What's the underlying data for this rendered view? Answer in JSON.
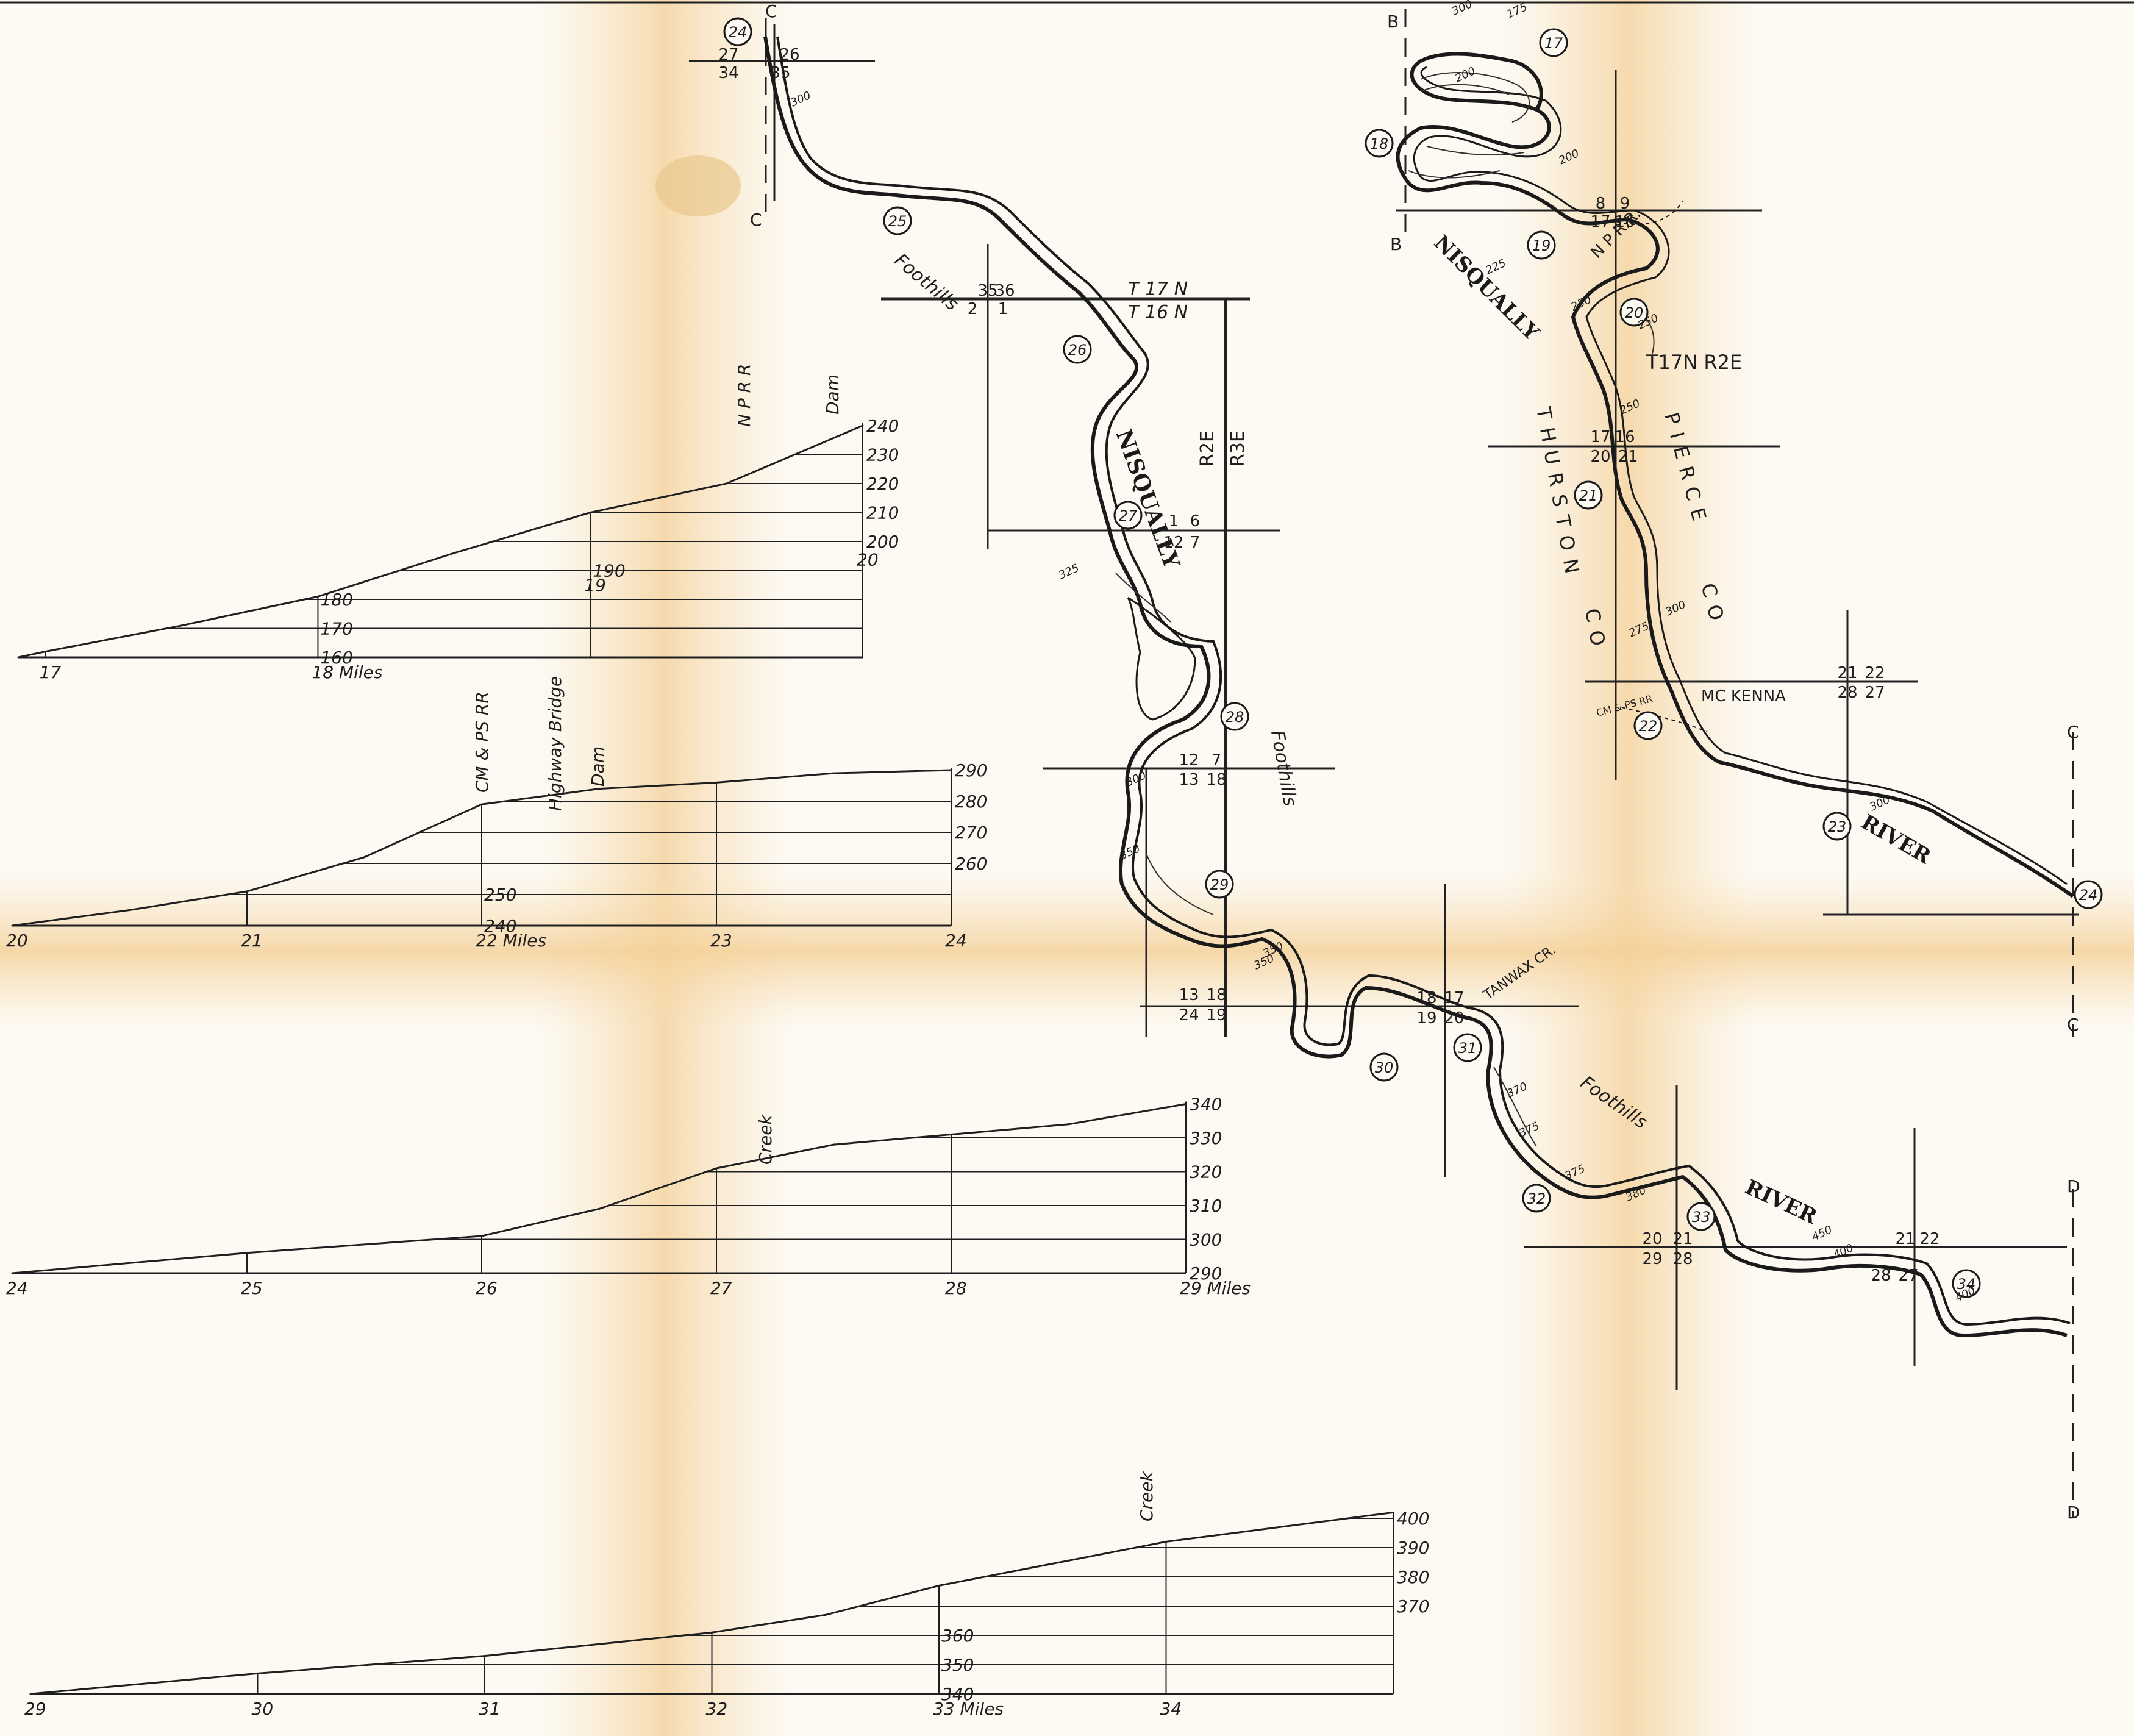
{
  "map": {
    "township_labels": {
      "t17n": "T 17 N",
      "t16n": "T 16 N",
      "r2e": "R2E",
      "r3e": "R3E",
      "t17n_r2e": "T17N R2E"
    },
    "river_labels": {
      "nisqually_a": "NISQUALLY",
      "nisqually_b": "NISQUALLY",
      "nisqually_c": "NISQUALLY",
      "river_a": "RIVER",
      "river_b": "RIVER"
    },
    "area_labels": {
      "foothills_a": "Foothills",
      "foothills_b": "Foothills",
      "foothills_c": "Foothills",
      "thurston": "THURSTON",
      "co_a": "CO",
      "pierce": "PIERCE",
      "co_b": "CO",
      "mckenna": "MC KENNA",
      "tanwax": "TANWAX CR.",
      "npr": "N P R.R.",
      "cmps": "CM & PS  RR"
    },
    "section_marks": {
      "c": "C",
      "b": "B",
      "d": "D"
    },
    "mile_markers": [
      "17",
      "18",
      "19",
      "20",
      "21",
      "22",
      "23",
      "24",
      "25",
      "26",
      "27",
      "28",
      "29",
      "30",
      "31",
      "32",
      "33",
      "34",
      "24"
    ],
    "section_numbers": [
      "27",
      "26",
      "34",
      "35",
      "35",
      "36",
      "2",
      "1",
      "1",
      "6",
      "12",
      "7",
      "12",
      "7",
      "13",
      "18",
      "13",
      "18",
      "24",
      "19",
      "8",
      "9",
      "17",
      "16",
      "17",
      "16",
      "20",
      "21",
      "21",
      "22",
      "28",
      "27",
      "18",
      "17",
      "19",
      "20",
      "20",
      "21",
      "29",
      "28",
      "21",
      "22",
      "28",
      "27"
    ],
    "elevations": [
      "300",
      "175",
      "300",
      "200",
      "200",
      "225",
      "250",
      "250",
      "275",
      "300",
      "325",
      "300",
      "350",
      "350",
      "375",
      "370",
      "375",
      "380",
      "400",
      "450",
      "400",
      "300",
      "250",
      "350"
    ]
  },
  "profiles": [
    {
      "id": "profile-1",
      "x_ticks": [
        "17",
        "18 Miles"
      ],
      "x_ticks_right": [
        "19",
        "20"
      ],
      "y_ticks_left": [
        "160",
        "170",
        "180"
      ],
      "y_ticks_right": [
        "190",
        "200",
        "210",
        "220",
        "230",
        "240"
      ],
      "annotations": [
        "N P R R",
        "Dam"
      ]
    },
    {
      "id": "profile-2",
      "x_ticks": [
        "20",
        "21",
        "22 Miles",
        "23",
        "24"
      ],
      "y_ticks_left": [
        "240",
        "250"
      ],
      "y_ticks_right": [
        "260",
        "270",
        "280",
        "290"
      ],
      "annotations": [
        "CM & PS RR",
        "Highway Bridge",
        "Dam"
      ]
    },
    {
      "id": "profile-3",
      "x_ticks": [
        "24",
        "25",
        "26",
        "27",
        "28",
        "29 Miles"
      ],
      "y_ticks_right": [
        "290",
        "300",
        "310",
        "320",
        "330",
        "340"
      ],
      "annotations": [
        "Creek"
      ]
    },
    {
      "id": "profile-4",
      "x_ticks": [
        "29",
        "30",
        "31",
        "32",
        "33 Miles",
        "34"
      ],
      "y_ticks_left": [
        "340",
        "350",
        "360"
      ],
      "y_ticks_right": [
        "370",
        "380",
        "390",
        "400"
      ],
      "annotations": [
        "Creek"
      ]
    }
  ],
  "chart_data": [
    {
      "type": "line",
      "x": [
        16.9,
        17.0,
        17.5,
        18.0,
        18.5,
        19.0,
        19.5,
        20.0
      ],
      "values": [
        160,
        162,
        171,
        181,
        196,
        210,
        220,
        240
      ],
      "ylim": [
        160,
        240
      ],
      "xlabel": "Miles"
    },
    {
      "type": "line",
      "x": [
        20,
        20.5,
        21,
        21.5,
        22,
        22.5,
        23,
        23.5,
        24
      ],
      "values": [
        240,
        245,
        251,
        262,
        279,
        284,
        286,
        289,
        290
      ],
      "ylim": [
        240,
        290
      ],
      "xlabel": "Miles"
    },
    {
      "type": "line",
      "x": [
        24,
        25,
        26,
        26.5,
        27,
        27.5,
        28,
        28.5,
        29
      ],
      "values": [
        290,
        296,
        301,
        309,
        321,
        328,
        331,
        334,
        340
      ],
      "ylim": [
        290,
        340
      ],
      "xlabel": "Miles"
    },
    {
      "type": "line",
      "x": [
        29,
        30,
        31,
        32,
        32.5,
        33,
        34,
        35
      ],
      "values": [
        340,
        347,
        353,
        361,
        367,
        377,
        392,
        402
      ],
      "ylim": [
        340,
        400
      ],
      "xlabel": "Miles"
    }
  ]
}
